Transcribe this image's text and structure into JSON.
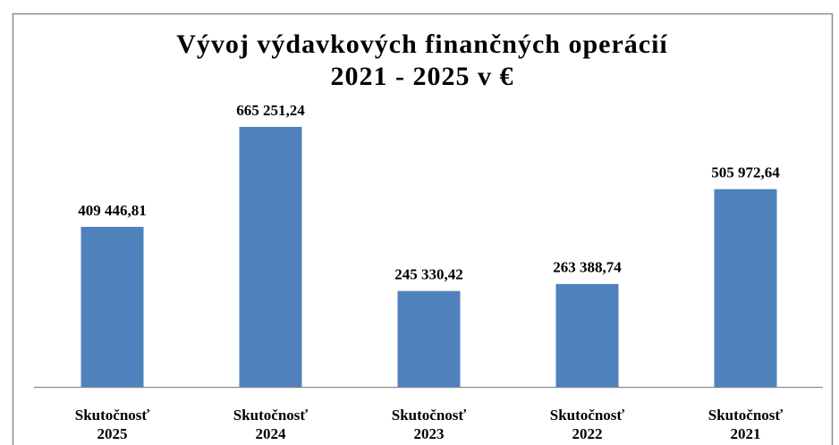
{
  "chart_data": {
    "type": "bar",
    "title": [
      "Vývoj výdavkových finančných operácií",
      "2021 - 2025 v €"
    ],
    "categories": [
      "Skutočnosť 2025",
      "Skutočnosť 2024",
      "Skutočnosť 2023",
      "Skutočnosť 2022",
      "Skutočnosť 2021"
    ],
    "values": [
      409446.81,
      665251.24,
      245330.42,
      263388.74,
      505972.64
    ],
    "value_labels": [
      "409 446,81",
      "665 251,24",
      "245 330,42",
      "263 388,74",
      "505 972,64"
    ],
    "color": "#4f81bd"
  }
}
